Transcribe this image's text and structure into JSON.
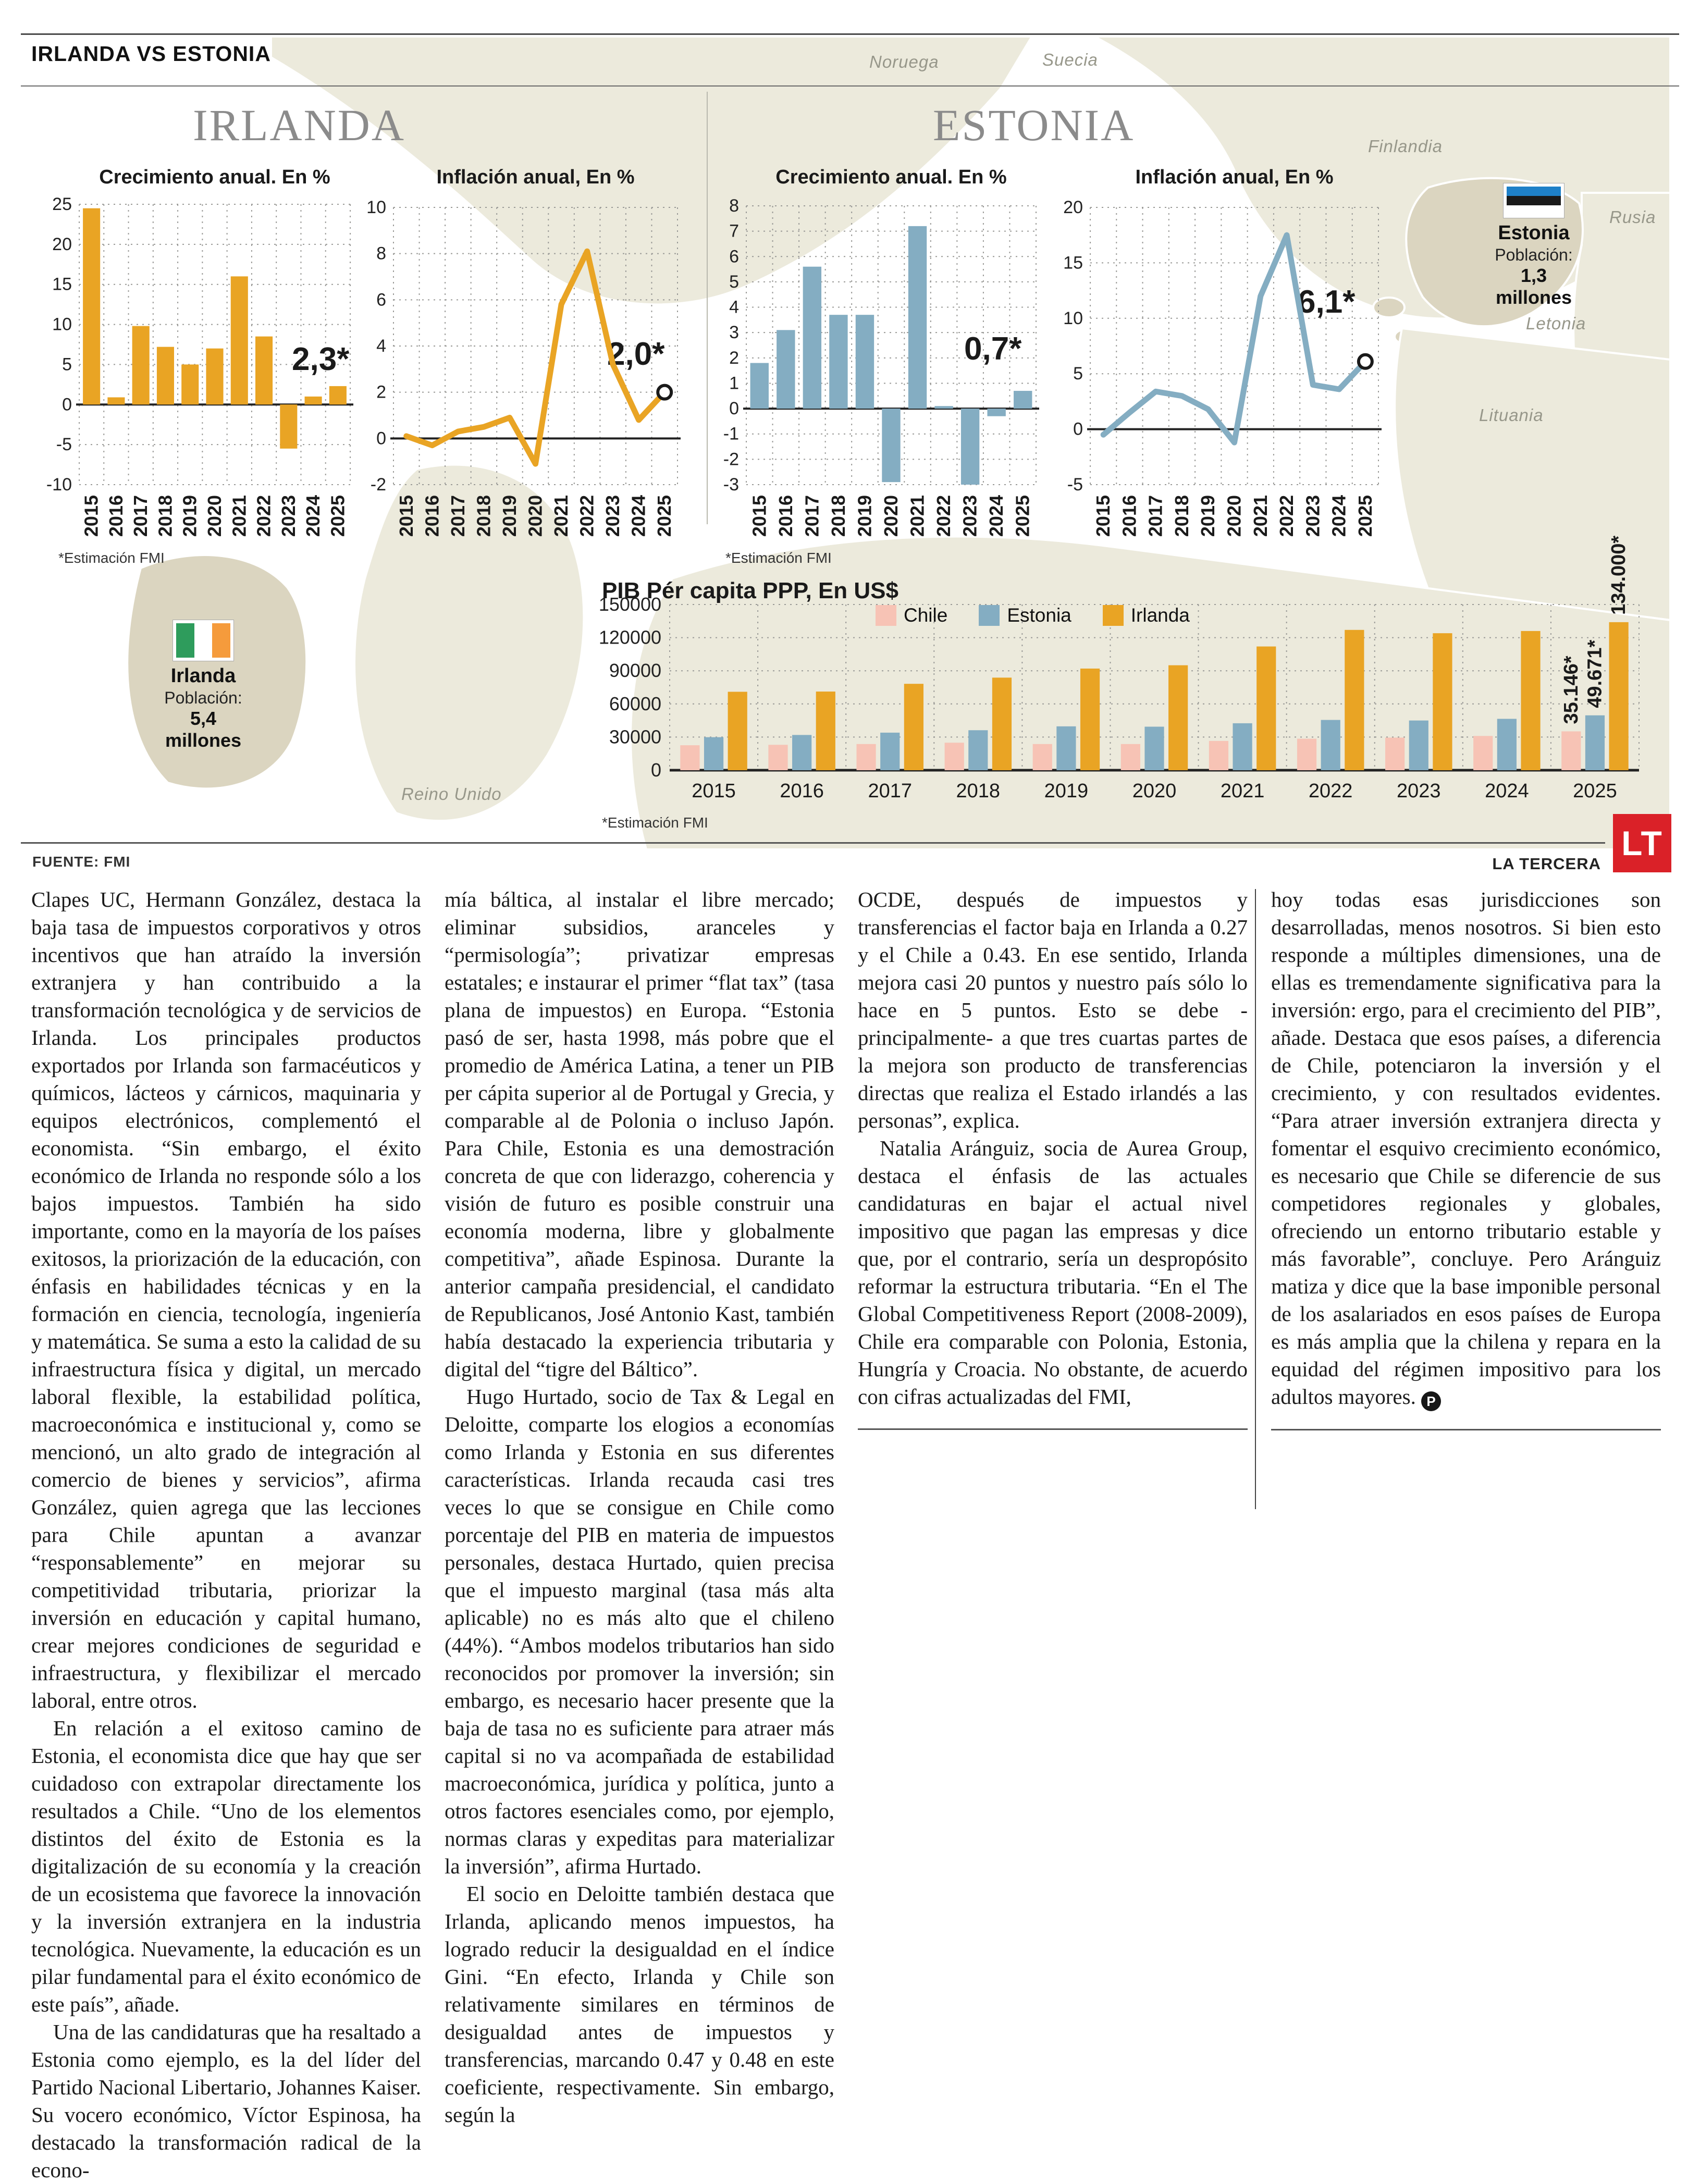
{
  "header": {
    "kicker": "IRLANDA VS ESTONIA"
  },
  "sections": {
    "ireland_title": "IRLANDA",
    "estonia_title": "ESTONIA"
  },
  "map": {
    "labels": [
      "Noruega",
      "Suecia",
      "Finlandia",
      "Rusia",
      "Letonia",
      "Lituania",
      "Reino Unido"
    ],
    "ireland_callout": {
      "name": "Irlanda",
      "pop_label": "Población:",
      "pop_value": "5,4 millones"
    },
    "estonia_callout": {
      "name": "Estonia",
      "pop_label": "Población:",
      "pop_value": "1,3 millones"
    }
  },
  "colors": {
    "irlanda": "#E9A424",
    "estonia": "#84ADC2",
    "chile": "#F7C3B5",
    "land": "#ECEADC",
    "land_highlight": "#DBD5C0",
    "lt_red": "#DA2128",
    "estonia_flag": [
      "#1E80C8",
      "#1a1a1a",
      "#ffffff"
    ],
    "ireland_flag": [
      "#2E9C5C",
      "#ffffff",
      "#F59B3C"
    ]
  },
  "chart_data": [
    {
      "id": "ie_growth",
      "type": "bar",
      "title": "Crecimiento anual. En %",
      "categories": [
        "2015",
        "2016",
        "2017",
        "2018",
        "2019",
        "2020",
        "2021",
        "2022",
        "2023",
        "2024",
        "2025"
      ],
      "values": [
        24.5,
        0.9,
        9.8,
        7.2,
        5.0,
        7.0,
        16.0,
        8.5,
        -5.5,
        1.0,
        2.3
      ],
      "ylim": [
        -10,
        25
      ],
      "yticks": [
        25,
        20,
        15,
        10,
        5,
        0,
        -5,
        -10
      ],
      "annotation": "2,3*",
      "footnote": "*Estimación FMI",
      "grid": true,
      "color_key": "irlanda"
    },
    {
      "id": "ie_inflation",
      "type": "line",
      "title": "Inflación anual, En %",
      "categories": [
        "2015",
        "2016",
        "2017",
        "2018",
        "2019",
        "2020",
        "2021",
        "2022",
        "2023",
        "2024",
        "2025"
      ],
      "values": [
        0.1,
        -0.3,
        0.3,
        0.5,
        0.9,
        -1.1,
        5.8,
        8.1,
        3.2,
        0.8,
        2.0
      ],
      "ylim": [
        -2,
        10
      ],
      "yticks": [
        10,
        8,
        6,
        4,
        2,
        0,
        -2
      ],
      "annotation": "2,0*",
      "grid": true,
      "color_key": "irlanda"
    },
    {
      "id": "ee_growth",
      "type": "bar",
      "title": "Crecimiento anual. En %",
      "categories": [
        "2015",
        "2016",
        "2017",
        "2018",
        "2019",
        "2020",
        "2021",
        "2022",
        "2023",
        "2024",
        "2025"
      ],
      "values": [
        1.8,
        3.1,
        5.6,
        3.7,
        3.7,
        -2.9,
        7.2,
        0.1,
        -3.0,
        -0.3,
        0.7
      ],
      "ylim": [
        -3,
        8
      ],
      "yticks": [
        8,
        7,
        6,
        5,
        4,
        3,
        2,
        1,
        0,
        -1,
        -2,
        -3
      ],
      "annotation": "0,7*",
      "footnote": "*Estimación FMI",
      "grid": true,
      "color_key": "estonia"
    },
    {
      "id": "ee_inflation",
      "type": "line",
      "title": "Inflación anual, En %",
      "categories": [
        "2015",
        "2016",
        "2017",
        "2018",
        "2019",
        "2020",
        "2021",
        "2022",
        "2023",
        "2024",
        "2025"
      ],
      "values": [
        -0.5,
        1.5,
        3.4,
        3.0,
        1.8,
        -1.2,
        12.0,
        17.5,
        4.0,
        3.6,
        6.1
      ],
      "ylim": [
        -5,
        20
      ],
      "yticks": [
        20,
        15,
        10,
        5,
        0,
        -5
      ],
      "annotation": "6,1*",
      "grid": true,
      "color_key": "estonia"
    },
    {
      "id": "pib",
      "type": "grouped-bar",
      "title": "PIB Pér capita PPP, En US$",
      "categories": [
        "2015",
        "2016",
        "2017",
        "2018",
        "2019",
        "2020",
        "2021",
        "2022",
        "2023",
        "2024",
        "2025"
      ],
      "series": [
        {
          "name": "Chile",
          "color_key": "chile",
          "values": [
            22600,
            23000,
            23700,
            24900,
            23700,
            23700,
            26500,
            28500,
            29500,
            31000,
            35146
          ]
        },
        {
          "name": "Estonia",
          "color_key": "estonia",
          "values": [
            29900,
            31900,
            34000,
            36200,
            39700,
            39400,
            42500,
            45500,
            45000,
            46500,
            49671
          ]
        },
        {
          "name": "Irlanda",
          "color_key": "irlanda",
          "values": [
            71000,
            71200,
            78200,
            83800,
            92000,
            95000,
            112000,
            127000,
            124000,
            126000,
            134000
          ]
        }
      ],
      "ylim": [
        0,
        150000
      ],
      "yticks": [
        150000,
        120000,
        90000,
        60000,
        30000,
        0
      ],
      "legend_position": "top",
      "bar_labels_2025": [
        "35.146*",
        "49.671*",
        "134.000*"
      ],
      "footnote": "*Estimación FMI",
      "grid": true
    }
  ],
  "infographic_footer": {
    "fuente": "FUENTE: FMI",
    "brand": "LA TERCERA",
    "logo": "LT"
  },
  "article": {
    "columns": [
      {
        "paragraphs": [
          "Clapes UC, Hermann González, destaca la baja tasa de impuestos corporativos y otros incentivos que han atraído la inversión extranjera y han contribuido a la transformación tecnológica y de servicios de Irlanda. Los principales productos exportados por Irlanda son farmacéuticos y químicos, lácteos y cárnicos, maquinaria y equipos electrónicos, complementó el economista. “Sin embargo, el éxito económico de Irlanda no responde sólo a los bajos impuestos. También ha sido importante, como en la mayoría de los países exitosos, la priorización de la educación, con énfasis en habilidades técnicas y en la formación en ciencia, tecnología, ingeniería y matemática. Se suma a esto la calidad de su infraestructura física y digital, un mercado laboral flexible, la estabilidad política, macroeconómica e institucional y, como se mencionó, un alto grado de integración al comercio de bienes y servicios”, afirma González, quien agrega que las lecciones para Chile apuntan a avanzar “responsablemente” en mejorar su competitividad tributaria, priorizar la inversión en educación y capital humano, crear mejores condiciones de seguridad e infraestructura, y flexibilizar el mercado laboral, entre otros.",
          "En relación a el exitoso camino de Estonia, el economista dice que hay que ser cuidadoso con extrapolar directamente los resultados a Chile. “Uno de los elementos distintos del éxito de Estonia es la digitalización de su economía y la creación de un ecosistema que favorece la innovación y la inversión extranjera en la industria tecnológica. Nuevamente, la educación es un pilar fundamental para el éxito económico de este país”, añade.",
          "Una de las candidaturas que ha resaltado a Estonia como ejemplo, es la del líder del Partido Nacional Libertario, Johannes Kaiser. Su vocero económico, Víctor Espinosa, ha destacado la transformación radical de la econo-"
        ]
      },
      {
        "paragraphs": [
          "mía báltica, al instalar el libre mercado; eliminar subsidios, aranceles y “permisología”; privatizar empresas estatales; e instaurar el primer “flat tax” (tasa plana de impuestos) en Europa. “Estonia pasó de ser, hasta 1998, más pobre que el promedio de América Latina, a tener un PIB per cápita superior al de Portugal y Grecia, y comparable al de Polonia o incluso Japón. Para Chile, Estonia es una demostración concreta de que con liderazgo, coherencia y visión de futuro es posible construir una economía moderna, libre y globalmente competitiva”, añade Espinosa. Durante la anterior campaña presidencial, el candidato de Republicanos, José Antonio Kast, también había destacado la experiencia tributaria y digital del “tigre del Báltico”.",
          "Hugo Hurtado, socio de Tax & Legal en Deloitte, comparte los elogios a economías como Irlanda y Estonia en sus diferentes características. Irlanda recauda casi tres veces lo que se consigue en Chile como porcentaje del PIB en materia de impuestos personales, destaca Hurtado, quien precisa que el impuesto marginal (tasa más alta aplicable) no es más alto que el chileno (44%). “Ambos modelos tributarios han sido reconocidos por promover la inversión; sin embargo, es necesario hacer presente que la baja de tasa no es suficiente para atraer más capital si no va acompañada de estabilidad macroeconómica, jurídica y política, junto a otros factores esenciales como, por ejemplo, normas claras y expeditas para materializar la inversión”, afirma Hurtado.",
          "El socio en Deloitte también destaca que Irlanda, aplicando menos impuestos, ha logrado reducir la desigualdad en el índice Gini. “En efecto, Irlanda y Chile son relativamente similares en términos de desigualdad antes de impuestos y transferencias, marcando 0.47 y 0.48 en este coeficiente, respectivamente. Sin embargo, según la"
        ]
      },
      {
        "paragraphs": [
          "OCDE, después de impuestos y transferencias el factor baja en Irlanda a 0.27 y el Chile a 0.43. En ese sentido, Irlanda mejora casi 20 puntos y nuestro país sólo lo hace en 5 puntos. Esto se debe -principalmente- a que tres cuartas partes de la mejora son producto de transferencias directas que realiza el Estado irlandés a las personas”, explica.",
          "Natalia Aránguiz, socia de Aurea Group, destaca el énfasis de las actuales candidaturas en bajar el actual nivel impositivo que pagan las empresas y dice que, por el contrario, sería un despropósito reformar la estructura tributaria. “En el The Global Competitiveness Report (2008-2009), Chile era comparable con Polonia, Estonia, Hungría y Croacia. No obstante, de acuerdo con cifras actualizadas del FMI,"
        ],
        "end_rule": true
      },
      {
        "paragraphs": [
          "hoy todas esas jurisdicciones son desarrolladas, menos nosotros. Si bien esto responde a múltiples dimensiones, una de ellas es tremendamente significativa para la inversión: ergo, para el crecimiento del PIB”, añade. Destaca que esos países, a diferencia de Chile, potenciaron la inversión y el crecimiento, y con resultados evidentes. “Para atraer inversión extranjera directa y fomentar el esquivo crecimiento económico, es necesario que Chile se diferencie de sus competidores regionales y globales, ofreciendo un entorno tributario estable y más favorable”, concluye. Pero Aránguiz matiza y dice que la base imponible personal de los asalariados en esos países de Europa es más amplia que la chilena y repara en la equidad del régimen impositivo para los adultos mayores."
        ],
        "end_rule": true,
        "end_mark": "P"
      }
    ]
  }
}
